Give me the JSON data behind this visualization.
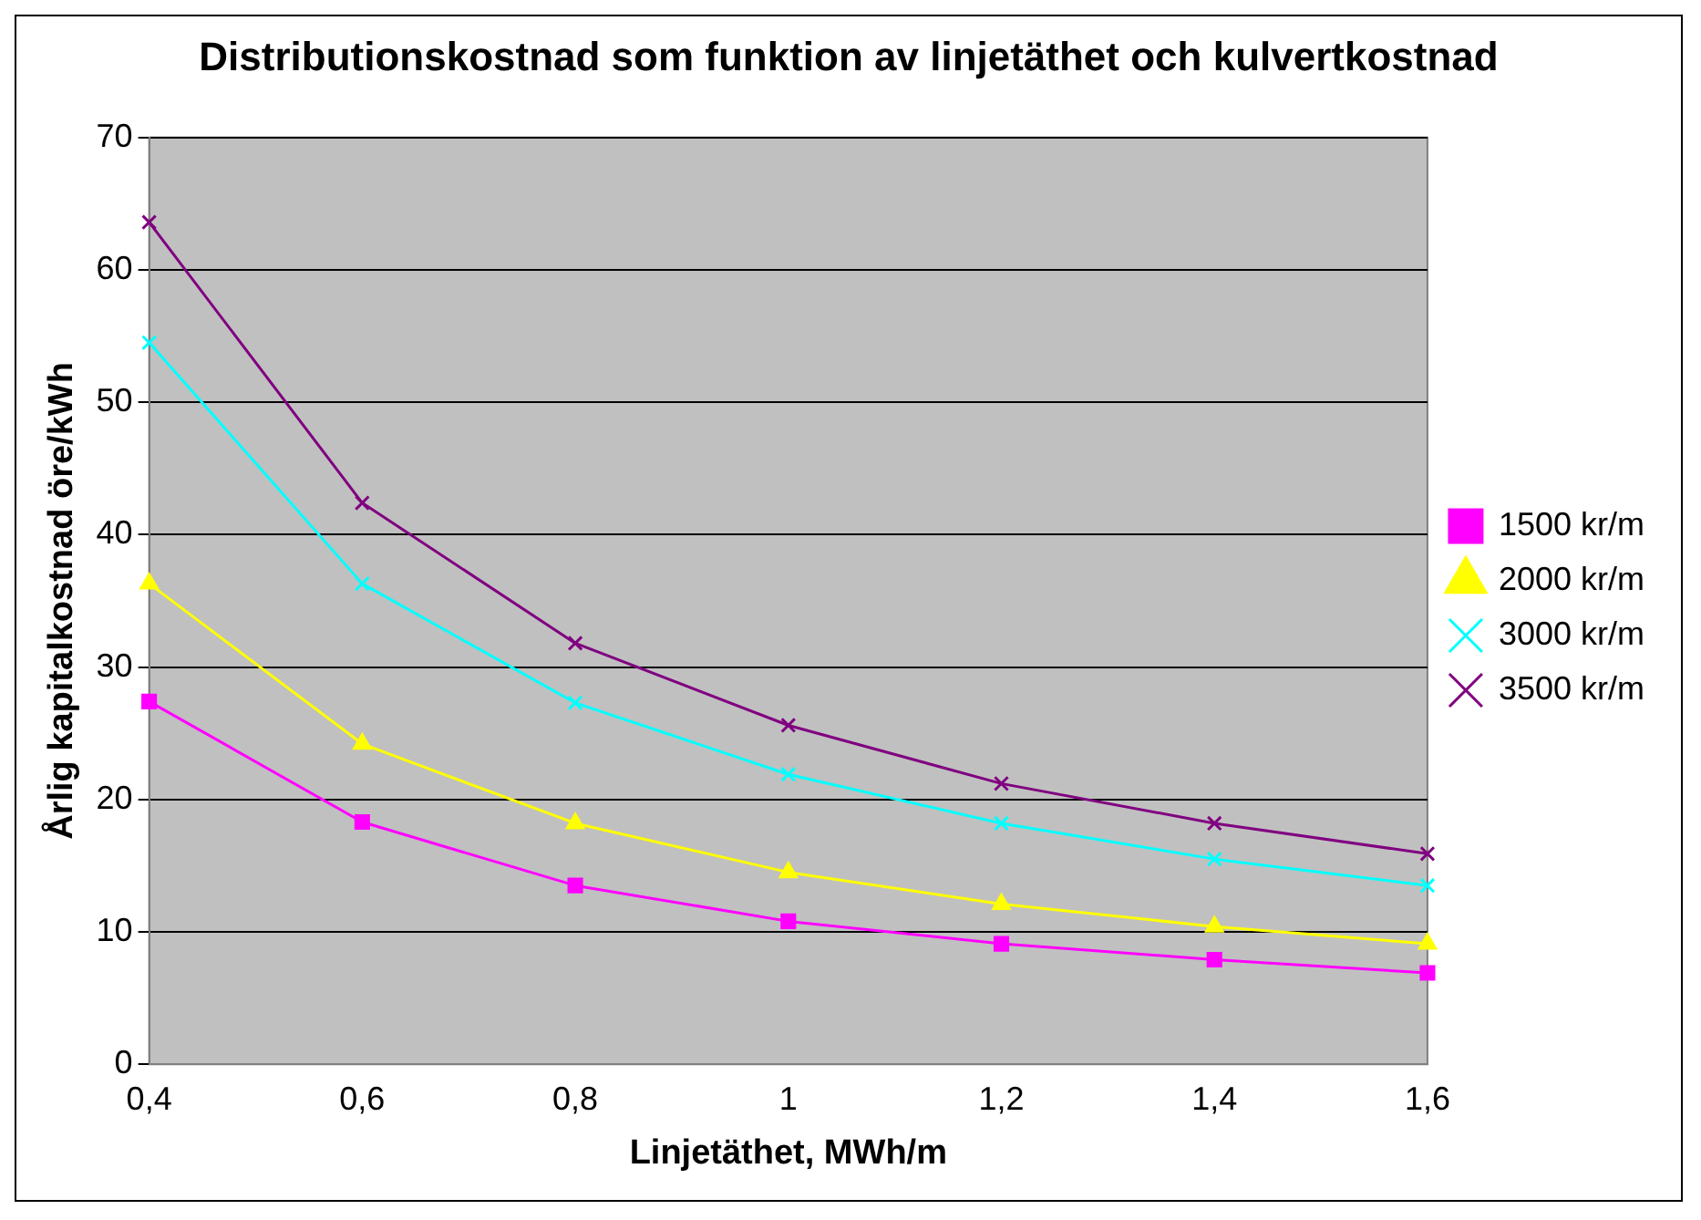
{
  "chart_data": {
    "type": "line",
    "title": "Distributionskostnad som funktion av linjetäthet och kulvertkostnad",
    "xlabel": "Linjetäthet, MWh/m",
    "ylabel": "Årlig kapitalkostnad öre/kWh",
    "categories": [
      "0,4",
      "0,6",
      "0,8",
      "1",
      "1,2",
      "1,4",
      "1,6"
    ],
    "series": [
      {
        "name": "1500 kr/m",
        "color": "#ff00ff",
        "marker": "square",
        "values": [
          27.4,
          18.3,
          13.5,
          10.8,
          9.1,
          7.9,
          6.9
        ]
      },
      {
        "name": "2000 kr/m",
        "color": "#ffff00",
        "marker": "triangle",
        "values": [
          36.3,
          24.2,
          18.2,
          14.5,
          12.1,
          10.4,
          9.1
        ]
      },
      {
        "name": "3000 kr/m",
        "color": "#00ffff",
        "marker": "cross",
        "values": [
          54.5,
          36.3,
          27.3,
          21.9,
          18.2,
          15.5,
          13.5
        ]
      },
      {
        "name": "3500 kr/m",
        "color": "#800080",
        "marker": "cross",
        "values": [
          63.6,
          42.4,
          31.8,
          25.6,
          21.2,
          18.2,
          15.9
        ]
      }
    ],
    "ylim": [
      0,
      70
    ],
    "yticks": [
      0,
      10,
      20,
      30,
      40,
      50,
      60,
      70
    ],
    "grid": "y",
    "legend": "right"
  }
}
